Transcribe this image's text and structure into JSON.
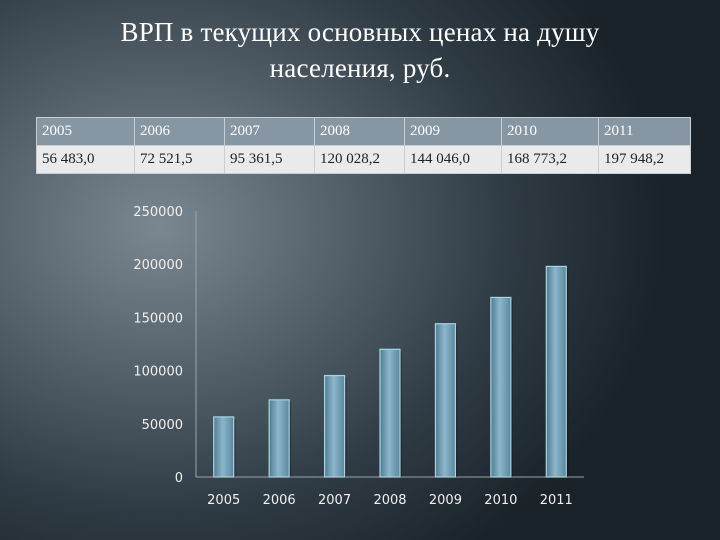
{
  "title_lines": [
    "ВРП в текущих основных ценах на душу",
    "населения, руб."
  ],
  "table": {
    "years": [
      "2005",
      "2006",
      "2007",
      "2008",
      "2009",
      "2010",
      "2011"
    ],
    "values": [
      "56 483,0",
      "72 521,5",
      "95 361,5",
      "120 028,2",
      "144 046,0",
      "168 773,2",
      "197 948,2"
    ]
  },
  "colors": {
    "table_header": "#8796a3",
    "table_body": "#e8eaec",
    "bar_fill": "#7fa9bf",
    "bar_edge": "#a9d2e4"
  },
  "chart_data": {
    "type": "bar",
    "categories": [
      "2005",
      "2006",
      "2007",
      "2008",
      "2009",
      "2010",
      "2011"
    ],
    "values": [
      56483.0,
      72521.5,
      95361.5,
      120028.2,
      144046.0,
      168773.2,
      197948.2
    ],
    "ylim": [
      0,
      250000
    ],
    "yticks": [
      "0",
      "50000",
      "100000",
      "150000",
      "200000",
      "250000"
    ],
    "grid": false,
    "legend": "none"
  }
}
